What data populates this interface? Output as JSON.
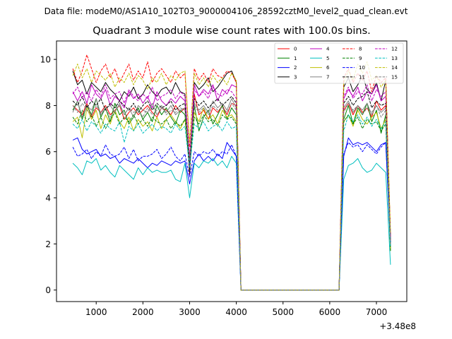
{
  "figure": {
    "suptitle": "Data file: modeM0/AS1A10_102T03_9000004106_28592cztM0_level2_quad_clean.evt"
  },
  "chart_data": {
    "type": "line",
    "title": "Quadrant 3 module wise count rates with 100.0s bins.",
    "xlabel": "",
    "ylabel": "",
    "x_offset_label": "+3.48e8",
    "xlim": [
      150,
      7650
    ],
    "ylim": [
      -0.5,
      10.8
    ],
    "xticks": [
      1000,
      2000,
      3000,
      4000,
      5000,
      6000,
      7000
    ],
    "yticks": [
      0,
      2,
      4,
      6,
      8,
      10
    ],
    "legend_position": "top-right",
    "x": [
      500,
      600,
      700,
      800,
      900,
      1000,
      1100,
      1200,
      1300,
      1400,
      1500,
      1600,
      1700,
      1800,
      1900,
      2000,
      2100,
      2200,
      2300,
      2400,
      2500,
      2600,
      2700,
      2800,
      2900,
      3000,
      3100,
      3200,
      3300,
      3400,
      3500,
      3600,
      3700,
      3800,
      3900,
      4000,
      4100,
      4200,
      4300,
      4400,
      4500,
      4600,
      4700,
      4800,
      4900,
      5000,
      5100,
      5200,
      5300,
      5400,
      5500,
      5600,
      5700,
      5800,
      5900,
      6000,
      6100,
      6200,
      6300,
      6400,
      6500,
      6600,
      6700,
      6800,
      6900,
      7000,
      7100,
      7200,
      7300
    ],
    "series": [
      {
        "name": "0",
        "color": "#ff0000",
        "dash": "solid",
        "values": [
          8.0,
          7.8,
          7.6,
          8.1,
          7.5,
          7.9,
          7.7,
          8.0,
          7.6,
          7.8,
          8.0,
          7.4,
          7.7,
          7.9,
          7.6,
          7.8,
          8.0,
          7.7,
          7.5,
          7.9,
          7.8,
          7.6,
          8.0,
          7.7,
          7.9,
          5.0,
          8.5,
          7.6,
          7.8,
          7.4,
          7.9,
          7.7,
          8.0,
          7.6,
          8.1,
          8.0,
          0.0,
          0.0,
          0.0,
          0.0,
          0.0,
          0.0,
          0.0,
          0.0,
          0.0,
          0.0,
          0.0,
          0.0,
          0.0,
          0.0,
          0.0,
          0.0,
          0.0,
          0.0,
          0.0,
          0.0,
          0.0,
          0.0,
          7.8,
          8.1,
          7.6,
          8.0,
          7.7,
          7.9,
          7.5,
          8.2,
          7.8,
          8.0,
          2.0
        ]
      },
      {
        "name": "1",
        "color": "#008000",
        "dash": "solid",
        "values": [
          7.8,
          8.2,
          7.4,
          8.0,
          7.6,
          8.3,
          7.5,
          7.9,
          7.3,
          8.1,
          7.6,
          7.8,
          7.2,
          7.5,
          7.9,
          7.4,
          7.7,
          7.3,
          8.0,
          7.6,
          7.9,
          7.5,
          7.2,
          7.8,
          7.6,
          5.2,
          8.0,
          6.9,
          7.5,
          7.8,
          7.2,
          7.6,
          8.0,
          7.4,
          7.9,
          7.6,
          0.0,
          0.0,
          0.0,
          0.0,
          0.0,
          0.0,
          0.0,
          0.0,
          0.0,
          0.0,
          0.0,
          0.0,
          0.0,
          0.0,
          0.0,
          0.0,
          0.0,
          0.0,
          0.0,
          0.0,
          0.0,
          0.0,
          7.4,
          8.0,
          7.2,
          7.9,
          7.6,
          8.1,
          7.3,
          7.8,
          6.8,
          7.6,
          1.8
        ]
      },
      {
        "name": "2",
        "color": "#0000ff",
        "dash": "solid",
        "values": [
          6.5,
          6.6,
          6.1,
          5.9,
          6.0,
          6.1,
          5.8,
          5.9,
          5.7,
          5.8,
          5.5,
          5.7,
          5.6,
          5.5,
          5.7,
          5.5,
          5.3,
          5.5,
          5.4,
          5.6,
          5.5,
          5.4,
          5.6,
          5.5,
          5.6,
          4.6,
          5.6,
          5.9,
          5.6,
          5.8,
          5.6,
          5.9,
          5.7,
          6.4,
          6.1,
          5.8,
          0.0,
          0.0,
          0.0,
          0.0,
          0.0,
          0.0,
          0.0,
          0.0,
          0.0,
          0.0,
          0.0,
          0.0,
          0.0,
          0.0,
          0.0,
          0.0,
          0.0,
          0.0,
          0.0,
          0.0,
          0.0,
          0.0,
          5.8,
          6.6,
          6.3,
          6.4,
          6.3,
          6.4,
          6.2,
          6.0,
          6.3,
          6.4,
          1.9
        ]
      },
      {
        "name": "3",
        "color": "#000000",
        "dash": "solid",
        "values": [
          9.5,
          8.9,
          9.1,
          8.5,
          9.0,
          8.8,
          8.6,
          9.0,
          8.7,
          8.5,
          8.2,
          8.6,
          8.4,
          8.8,
          8.3,
          8.5,
          8.9,
          8.6,
          8.4,
          8.7,
          8.8,
          8.5,
          9.0,
          8.6,
          8.5,
          5.1,
          9.0,
          8.7,
          8.9,
          9.2,
          8.6,
          8.8,
          9.1,
          9.4,
          9.5,
          9.0,
          0.0,
          0.0,
          0.0,
          0.0,
          0.0,
          0.0,
          0.0,
          0.0,
          0.0,
          0.0,
          0.0,
          0.0,
          0.0,
          0.0,
          0.0,
          0.0,
          0.0,
          0.0,
          0.0,
          0.0,
          0.0,
          0.0,
          8.8,
          9.2,
          8.6,
          8.9,
          9.3,
          8.7,
          8.5,
          9.0,
          8.2,
          9.1,
          2.3
        ]
      },
      {
        "name": "4",
        "color": "#bf00bf",
        "dash": "solid",
        "values": [
          8.6,
          8.2,
          8.6,
          8.1,
          8.9,
          8.5,
          8.3,
          8.7,
          8.0,
          8.4,
          8.2,
          7.9,
          8.6,
          8.3,
          8.5,
          8.1,
          8.4,
          7.9,
          8.6,
          8.2,
          8.0,
          8.3,
          8.1,
          8.4,
          8.2,
          5.4,
          8.9,
          8.4,
          8.7,
          8.5,
          8.9,
          8.2,
          8.7,
          8.5,
          8.9,
          8.8,
          0.0,
          0.0,
          0.0,
          0.0,
          0.0,
          0.0,
          0.0,
          0.0,
          0.0,
          0.0,
          0.0,
          0.0,
          0.0,
          0.0,
          0.0,
          0.0,
          0.0,
          0.0,
          0.0,
          0.0,
          0.0,
          0.0,
          8.3,
          8.7,
          8.4,
          8.8,
          8.2,
          8.6,
          8.5,
          8.9,
          8.2,
          8.4,
          2.1
        ]
      },
      {
        "name": "5",
        "color": "#00bfbf",
        "dash": "solid",
        "values": [
          5.5,
          5.3,
          5.0,
          5.6,
          5.5,
          5.7,
          5.2,
          5.4,
          5.1,
          4.9,
          5.4,
          5.2,
          5.0,
          4.8,
          5.3,
          5.0,
          5.3,
          5.1,
          5.2,
          5.1,
          5.1,
          5.2,
          4.8,
          4.7,
          5.5,
          4.0,
          5.5,
          5.3,
          5.6,
          5.5,
          5.7,
          5.4,
          5.6,
          5.3,
          5.8,
          5.5,
          0.0,
          0.0,
          0.0,
          0.0,
          0.0,
          0.0,
          0.0,
          0.0,
          0.0,
          0.0,
          0.0,
          0.0,
          0.0,
          0.0,
          0.0,
          0.0,
          0.0,
          0.0,
          0.0,
          0.0,
          0.0,
          0.0,
          4.8,
          5.4,
          5.5,
          5.7,
          5.3,
          5.1,
          5.2,
          5.5,
          5.3,
          5.1,
          1.1
        ]
      },
      {
        "name": "6",
        "color": "#bfbf00",
        "dash": "solid",
        "values": [
          7.3,
          7.5,
          6.6,
          7.9,
          7.4,
          7.8,
          7.0,
          7.6,
          7.2,
          7.8,
          7.3,
          7.0,
          7.5,
          6.9,
          7.4,
          7.1,
          7.3,
          6.9,
          7.5,
          7.0,
          7.4,
          7.6,
          7.3,
          7.0,
          7.4,
          5.8,
          7.7,
          7.3,
          7.9,
          7.4,
          7.6,
          7.2,
          7.8,
          7.5,
          7.6,
          7.3,
          0.0,
          0.0,
          0.0,
          0.0,
          0.0,
          0.0,
          0.0,
          0.0,
          0.0,
          0.0,
          0.0,
          0.0,
          0.0,
          0.0,
          0.0,
          0.0,
          0.0,
          0.0,
          0.0,
          0.0,
          0.0,
          0.0,
          7.3,
          7.6,
          7.1,
          7.8,
          7.4,
          7.2,
          7.5,
          7.7,
          7.0,
          7.4,
          1.7
        ]
      },
      {
        "name": "7",
        "color": "#808080",
        "dash": "solid",
        "values": [
          7.7,
          8.2,
          7.5,
          8.0,
          7.8,
          8.3,
          7.6,
          7.9,
          8.0,
          7.7,
          8.1,
          7.6,
          7.9,
          7.5,
          8.0,
          7.8,
          7.7,
          8.1,
          7.6,
          7.9,
          7.7,
          8.0,
          7.6,
          7.8,
          7.9,
          5.6,
          8.1,
          7.8,
          8.0,
          7.7,
          8.2,
          7.9,
          8.1,
          7.8,
          8.3,
          7.9,
          0.0,
          0.0,
          0.0,
          0.0,
          0.0,
          0.0,
          0.0,
          0.0,
          0.0,
          0.0,
          0.0,
          0.0,
          0.0,
          0.0,
          0.0,
          0.0,
          0.0,
          0.0,
          0.0,
          0.0,
          0.0,
          0.0,
          7.9,
          8.2,
          7.7,
          8.0,
          7.8,
          8.1,
          7.6,
          8.0,
          7.7,
          7.9,
          2.0
        ]
      },
      {
        "name": "8",
        "color": "#ff0000",
        "dash": "dashed",
        "values": [
          9.6,
          9.0,
          9.5,
          10.2,
          9.6,
          9.0,
          9.5,
          9.8,
          9.2,
          9.6,
          9.0,
          9.4,
          9.8,
          9.1,
          9.5,
          9.2,
          9.9,
          9.0,
          9.4,
          9.6,
          9.3,
          9.0,
          9.5,
          9.2,
          9.4,
          6.2,
          9.6,
          9.1,
          9.4,
          9.0,
          9.6,
          9.3,
          9.2,
          9.5,
          9.4,
          9.0,
          0.0,
          0.0,
          0.0,
          0.0,
          0.0,
          0.0,
          0.0,
          0.0,
          0.0,
          0.0,
          0.0,
          0.0,
          0.0,
          0.0,
          0.0,
          0.0,
          0.0,
          0.0,
          0.0,
          0.0,
          0.0,
          0.0,
          9.2,
          9.6,
          9.0,
          9.4,
          9.1,
          9.5,
          8.6,
          9.3,
          9.0,
          9.2,
          2.4
        ]
      },
      {
        "name": "9",
        "color": "#008000",
        "dash": "dashed",
        "values": [
          7.5,
          7.2,
          7.8,
          7.3,
          7.6,
          7.1,
          7.5,
          7.0,
          7.4,
          7.7,
          7.2,
          7.5,
          7.3,
          7.6,
          7.2,
          7.4,
          7.1,
          7.5,
          7.3,
          7.2,
          7.4,
          7.0,
          7.3,
          7.1,
          7.4,
          5.5,
          7.5,
          7.2,
          7.6,
          7.3,
          7.4,
          7.1,
          7.6,
          7.4,
          7.5,
          7.2,
          0.0,
          0.0,
          0.0,
          0.0,
          0.0,
          0.0,
          0.0,
          0.0,
          0.0,
          0.0,
          0.0,
          0.0,
          0.0,
          0.0,
          0.0,
          0.0,
          0.0,
          0.0,
          0.0,
          0.0,
          0.0,
          0.0,
          7.3,
          7.6,
          7.2,
          7.5,
          7.0,
          7.4,
          7.2,
          7.3,
          6.9,
          7.2,
          1.7
        ]
      },
      {
        "name": "10",
        "color": "#0000ff",
        "dash": "dashed",
        "values": [
          6.2,
          5.8,
          5.9,
          6.1,
          5.7,
          6.0,
          5.8,
          6.3,
          5.9,
          5.8,
          5.9,
          6.2,
          5.7,
          6.1,
          5.6,
          5.8,
          5.8,
          5.9,
          6.1,
          5.7,
          5.9,
          6.2,
          5.8,
          5.6,
          5.9,
          4.9,
          6.0,
          5.8,
          6.0,
          5.9,
          6.1,
          5.8,
          6.0,
          5.9,
          6.3,
          5.8,
          0.0,
          0.0,
          0.0,
          0.0,
          0.0,
          0.0,
          0.0,
          0.0,
          0.0,
          0.0,
          0.0,
          0.0,
          0.0,
          0.0,
          0.0,
          0.0,
          0.0,
          0.0,
          0.0,
          0.0,
          0.0,
          0.0,
          5.9,
          6.4,
          6.2,
          6.3,
          6.0,
          6.3,
          6.1,
          5.9,
          6.2,
          6.4,
          2.0
        ]
      },
      {
        "name": "11",
        "color": "#000000",
        "dash": "dashed",
        "values": [
          8.2,
          8.0,
          8.4,
          7.9,
          8.2,
          8.0,
          8.3,
          7.8,
          8.1,
          7.9,
          8.2,
          8.0,
          7.8,
          8.1,
          7.7,
          8.0,
          8.2,
          7.8,
          8.1,
          7.9,
          8.0,
          8.2,
          7.8,
          8.0,
          8.1,
          5.5,
          8.3,
          8.0,
          8.2,
          7.9,
          8.1,
          8.3,
          8.0,
          8.2,
          8.4,
          8.1,
          0.0,
          0.0,
          0.0,
          0.0,
          0.0,
          0.0,
          0.0,
          0.0,
          0.0,
          0.0,
          0.0,
          0.0,
          0.0,
          0.0,
          0.0,
          0.0,
          0.0,
          0.0,
          0.0,
          0.0,
          0.0,
          0.0,
          8.1,
          8.4,
          8.0,
          8.3,
          8.4,
          8.6,
          7.9,
          8.2,
          8.0,
          8.1,
          2.1
        ]
      },
      {
        "name": "12",
        "color": "#bf00bf",
        "dash": "dashed",
        "values": [
          8.5,
          8.8,
          8.3,
          8.6,
          8.2,
          8.7,
          8.4,
          8.9,
          8.3,
          8.5,
          8.6,
          8.1,
          8.7,
          8.4,
          8.2,
          8.5,
          8.3,
          8.8,
          8.2,
          8.4,
          8.5,
          8.7,
          8.3,
          8.6,
          8.4,
          5.8,
          8.7,
          8.4,
          8.6,
          8.3,
          8.8,
          8.5,
          8.4,
          8.7,
          8.6,
          8.3,
          0.0,
          0.0,
          0.0,
          0.0,
          0.0,
          0.0,
          0.0,
          0.0,
          0.0,
          0.0,
          0.0,
          0.0,
          0.0,
          0.0,
          0.0,
          0.0,
          0.0,
          0.0,
          0.0,
          0.0,
          0.0,
          0.0,
          8.4,
          8.8,
          8.3,
          8.6,
          8.5,
          8.9,
          8.2,
          8.7,
          8.4,
          8.6,
          2.3
        ]
      },
      {
        "name": "13",
        "color": "#00bfbf",
        "dash": "dashed",
        "values": [
          7.2,
          7.0,
          7.4,
          6.9,
          7.3,
          7.1,
          6.8,
          7.2,
          7.0,
          6.9,
          7.3,
          6.4,
          7.1,
          6.9,
          7.2,
          6.8,
          7.0,
          7.2,
          6.9,
          7.1,
          7.0,
          6.8,
          7.2,
          6.9,
          7.1,
          5.3,
          7.2,
          7.0,
          7.3,
          6.9,
          7.1,
          7.2,
          6.9,
          7.3,
          7.0,
          7.1,
          0.0,
          0.0,
          0.0,
          0.0,
          0.0,
          0.0,
          0.0,
          0.0,
          0.0,
          0.0,
          0.0,
          0.0,
          0.0,
          0.0,
          0.0,
          0.0,
          0.0,
          0.0,
          0.0,
          0.0,
          0.0,
          0.0,
          6.9,
          7.6,
          7.3,
          7.6,
          7.2,
          7.5,
          7.1,
          7.4,
          7.0,
          7.3,
          1.9
        ]
      },
      {
        "name": "14",
        "color": "#bfbf00",
        "dash": "dashed",
        "values": [
          9.3,
          9.8,
          9.2,
          9.6,
          9.0,
          9.5,
          9.3,
          9.1,
          9.4,
          8.8,
          9.2,
          9.0,
          9.4,
          8.9,
          9.3,
          9.1,
          8.7,
          9.2,
          9.0,
          9.4,
          8.9,
          9.3,
          9.1,
          9.4,
          9.5,
          6.4,
          9.4,
          8.9,
          9.2,
          8.8,
          9.3,
          9.0,
          9.2,
          8.9,
          9.4,
          9.1,
          0.0,
          0.0,
          0.0,
          0.0,
          0.0,
          0.0,
          0.0,
          0.0,
          0.0,
          0.0,
          0.0,
          0.0,
          0.0,
          0.0,
          0.0,
          0.0,
          0.0,
          0.0,
          0.0,
          0.0,
          0.0,
          0.0,
          9.0,
          9.5,
          9.1,
          9.8,
          9.4,
          9.9,
          9.1,
          9.3,
          8.8,
          9.1,
          2.5
        ]
      },
      {
        "name": "15",
        "color": "#808080",
        "dash": "dashed",
        "values": [
          8.0,
          7.7,
          8.1,
          7.8,
          7.6,
          8.0,
          7.7,
          7.9,
          7.5,
          7.8,
          8.0,
          7.6,
          7.9,
          7.7,
          7.8,
          7.5,
          7.9,
          7.6,
          7.8,
          8.0,
          7.6,
          7.8,
          7.7,
          7.9,
          7.8,
          5.6,
          8.0,
          7.7,
          7.9,
          7.6,
          8.0,
          7.8,
          7.9,
          7.7,
          8.1,
          7.8,
          0.0,
          0.0,
          0.0,
          0.0,
          0.0,
          0.0,
          0.0,
          0.0,
          0.0,
          0.0,
          0.0,
          0.0,
          0.0,
          0.0,
          0.0,
          0.0,
          0.0,
          0.0,
          0.0,
          0.0,
          0.0,
          0.0,
          7.7,
          8.1,
          7.8,
          8.0,
          7.6,
          7.9,
          7.7,
          8.0,
          7.5,
          7.8,
          2.0
        ]
      }
    ]
  }
}
